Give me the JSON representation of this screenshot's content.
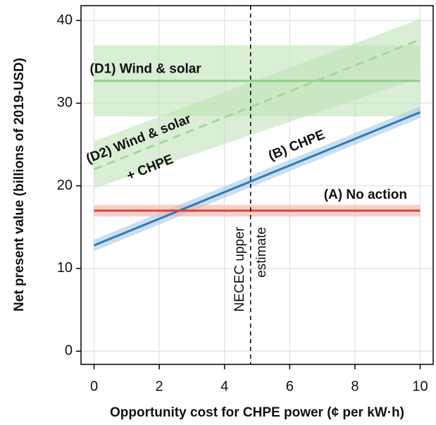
{
  "chart_data": {
    "type": "line",
    "xlabel": "Opportunity cost for CHPE power (¢ per kW·h)",
    "ylabel": "Net present value (billions of 2019-USD)",
    "xlim": [
      -0.4,
      10.4
    ],
    "ylim": [
      -1.6,
      41.8
    ],
    "xticks": [
      0,
      2,
      4,
      6,
      8,
      10
    ],
    "yticks": [
      0,
      10,
      20,
      30,
      40
    ],
    "grid": true,
    "series": [
      {
        "label": [
          "(D1) Wind & solar"
        ],
        "color": "#8fcf8a",
        "band_color": "#bfe3b8",
        "dash": false,
        "x": [
          0,
          10
        ],
        "values": [
          32.7,
          32.7
        ],
        "lower": [
          28.4,
          28.4
        ],
        "upper": [
          37.0,
          37.0
        ]
      },
      {
        "label": [
          "(D2) Wind & solar",
          "+ CHPE"
        ],
        "color": "#a3d89b",
        "band_color": "#bfe3b8",
        "dash": true,
        "x": [
          0,
          10
        ],
        "values": [
          22.0,
          37.7
        ],
        "lower": [
          19.7,
          33.1
        ],
        "upper": [
          25.4,
          40.2
        ]
      },
      {
        "label": [
          "(B) CHPE"
        ],
        "color": "#2b7bba",
        "band_color": "#a9c9e8",
        "dash": false,
        "x": [
          0,
          10
        ],
        "values": [
          12.8,
          28.9
        ],
        "lower": [
          12.1,
          28.2
        ],
        "upper": [
          13.5,
          29.6
        ]
      },
      {
        "label": [
          "(A) No action"
        ],
        "color": "#d9443a",
        "band_color": "#f2b0aa",
        "dash": false,
        "x": [
          0,
          10
        ],
        "values": [
          17.0,
          17.0
        ],
        "lower": [
          16.3,
          16.3
        ],
        "upper": [
          17.7,
          17.7
        ]
      }
    ],
    "vline": {
      "x": 4.8,
      "label": [
        "NECEC upper",
        "estimate"
      ]
    }
  }
}
